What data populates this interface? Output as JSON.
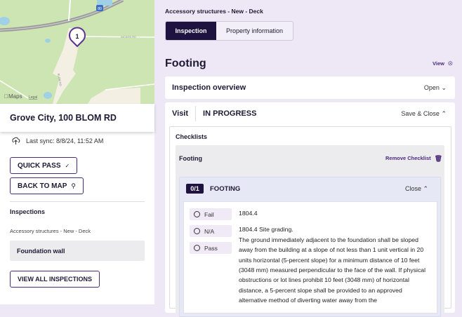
{
  "map": {
    "marker_label": "1",
    "road_labels": [
      "80",
      "NICKEN RD",
      "BLOM RD"
    ],
    "attribution": "Maps",
    "legal": "Legal"
  },
  "location": {
    "title": "Grove City, 100 BLOM RD",
    "sync": "Last sync: 8/8/24, 11:52 AM"
  },
  "actions": {
    "quick_pass": "QUICK PASS",
    "back_to_map": "BACK TO MAP",
    "view_all": "VIEW ALL INSPECTIONS"
  },
  "inspections": {
    "heading": "Inspections",
    "group": "Accessory structures - New - Deck",
    "items": [
      "Foundation wall"
    ]
  },
  "main": {
    "breadcrumb": "Accessory structures - New - Deck",
    "tabs": [
      "Inspection",
      "Property information"
    ],
    "title": "Footing",
    "view": "View",
    "overview": {
      "label": "Inspection overview",
      "action": "Open"
    },
    "visit": {
      "label": "Visit",
      "status": "IN PROGRESS",
      "action": "Save & Close"
    },
    "checklists": {
      "heading": "Checklists",
      "name": "Footing",
      "remove": "Remove Checklist",
      "item": {
        "count": "0/1",
        "title": "FOOTING",
        "action": "Close",
        "options": [
          "Fail",
          "N/A",
          "Pass"
        ],
        "code": "1804.4",
        "text_title": "1804.4 Site grading.",
        "text": "The ground immediately adjacent to the foundation shall be sloped away from the building at a slope of not less than 1 unit vertical in 20 units horizontal (5-percent slope) for a minimum distance of 10 feet (3048 mm) measured perpendicular to the face of the wall. If physical obstructions or lot lines prohibit 10 feet (3048 mm) of horizontal distance, a 5-percent slope shall be provided to an approved alternative method of diverting water away from the"
      }
    }
  },
  "colors": {
    "accent": "#4b2a7a",
    "navy": "#1e1240",
    "background": "#ede7f6"
  }
}
